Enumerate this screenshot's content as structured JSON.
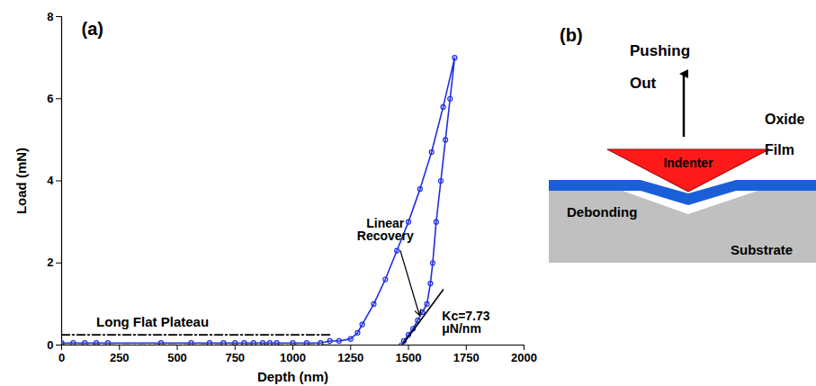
{
  "chart_data": {
    "type": "line",
    "title": "(a)",
    "x_label": "Depth (nm)",
    "y_label": "Load (mN)",
    "xlim": [
      0,
      2000
    ],
    "xticks": [
      0,
      250,
      500,
      750,
      1000,
      1250,
      1500,
      1750,
      2000
    ],
    "ylim": [
      0,
      8
    ],
    "yticks": [
      0,
      2,
      4,
      6,
      8
    ],
    "grid": false,
    "series": [
      {
        "type": "line",
        "marker": "circle",
        "color": "#1f2fe0",
        "x": [
          0,
          50,
          100,
          150,
          200,
          430,
          560,
          640,
          700,
          750,
          790,
          830,
          870,
          900,
          930,
          1000,
          1060,
          1120,
          1160,
          1200,
          1250,
          1280,
          1300,
          1350,
          1400,
          1450,
          1500,
          1550,
          1600,
          1650,
          1700,
          1680,
          1660,
          1640,
          1620,
          1605,
          1595,
          1580,
          1560,
          1540,
          1520,
          1500,
          1480,
          1470
        ],
        "values": [
          0.05,
          0.05,
          0.05,
          0.05,
          0.05,
          0.05,
          0.05,
          0.05,
          0.05,
          0.05,
          0.05,
          0.05,
          0.05,
          0.05,
          0.05,
          0.05,
          0.05,
          0.05,
          0.1,
          0.1,
          0.15,
          0.3,
          0.5,
          1.0,
          1.6,
          2.3,
          3.0,
          3.8,
          4.7,
          5.8,
          7.0,
          6.0,
          5.0,
          4.0,
          3.0,
          2.0,
          1.5,
          1.0,
          0.8,
          0.6,
          0.4,
          0.25,
          0.1,
          0.0
        ]
      },
      {
        "type": "line",
        "line_style": "solid",
        "color": "#000000",
        "x": [
          1480,
          1650
        ],
        "values": [
          0.05,
          1.35
        ]
      },
      {
        "type": "line",
        "line_style": "dashdot",
        "color": "#000000",
        "x": [
          0,
          1160
        ],
        "values": [
          0.25,
          0.25
        ]
      },
      {
        "type": "line",
        "line_style": "dashdot",
        "color": "#000000",
        "x": [
          0,
          1160
        ],
        "values": [
          0,
          0
        ]
      }
    ],
    "annotations": [
      "Long Flat Plateau",
      "Linear Recovery",
      "Kc=7.73 μN/nm"
    ]
  },
  "diagram": {
    "title": "(b)",
    "labels": {
      "pushing": "Pushing Out",
      "indenter": "Indenter",
      "film": "Oxide Film",
      "debonding": "Debonding",
      "substrate": "Substrate"
    },
    "colors": {
      "indenter": "#ff1a1a",
      "film": "#1a5fd8",
      "substrate": "#c0c0c0"
    }
  }
}
